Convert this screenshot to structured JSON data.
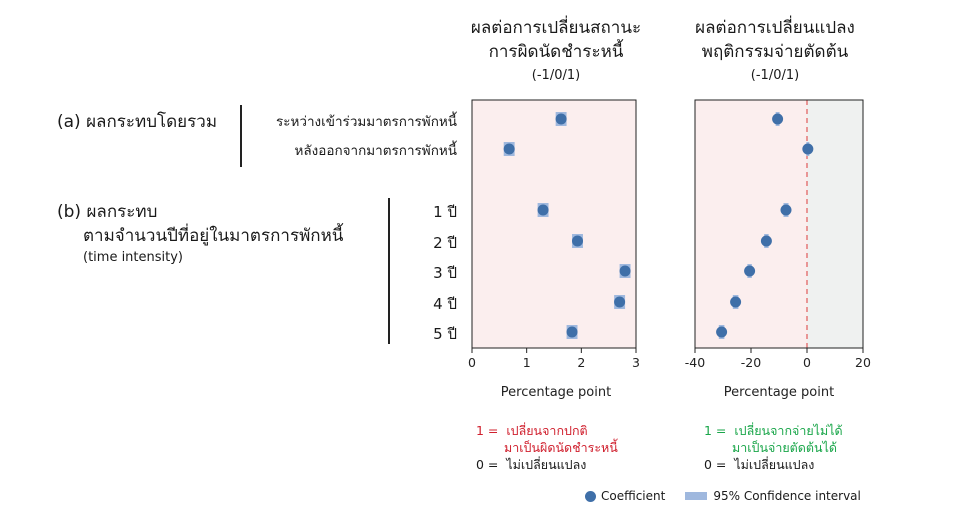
{
  "left_header": {
    "line1": "ผลต่อการเปลี่ยนสถานะ",
    "line2": "การผิดนัดชำระหนี้",
    "line3": "(-1/0/1)"
  },
  "right_header": {
    "line1": "ผลต่อการเปลี่ยนแปลง",
    "line2": "พฤติกรรมจ่ายตัดต้น",
    "line3": "(-1/0/1)"
  },
  "section_a": {
    "label": "(a)  ผลกระทบโดยรวม",
    "rows": [
      "ระหว่างเข้าร่วมมาตรการพักหนี้",
      "หลังออกจากมาตรการพักหนี้"
    ]
  },
  "section_b": {
    "line1": "(b)  ผลกระทบ",
    "line2": "ตามจำนวนปีที่อยู่ในมาตรการพักหนี้",
    "line3": "(time intensity)",
    "rows": [
      "1 ปี",
      "2 ปี",
      "3 ปี",
      "4 ปี",
      "5 ปี"
    ]
  },
  "left_note": {
    "l1_prefix": "1 =",
    "l1_text": "เปลี่ยนจากปกติ",
    "l2_text": "มาเป็นผิดนัดชำระหนี้",
    "l3_prefix": "0 =",
    "l3_text": "ไม่เปลี่ยนแปลง"
  },
  "right_note": {
    "l1_prefix": "1 =",
    "l1_text": "เปลี่ยนจากจ่ายไม่ได้",
    "l2_text": "มาเป็นจ่ายตัดต้นได้",
    "l3_prefix": "0 =",
    "l3_text": "ไม่เปลี่ยนแปลง"
  },
  "legend": {
    "coefficient": "Coefficient",
    "ci": "95% Confidence interval"
  },
  "colors": {
    "marker": "#3f6fa8",
    "ci": "#9fb8de",
    "left_bg": "#fbeeee",
    "right_bg_neg": "#fbeeee",
    "right_bg_pos": "#eff1f0",
    "zero_line": "#e05a5a",
    "note_red": "#d0202e",
    "note_green": "#1aa64a"
  },
  "chart_data": [
    {
      "type": "scatter",
      "xlabel": "Percentage point",
      "xlim": [
        0,
        3
      ],
      "xticks": [
        0,
        1,
        2,
        3
      ],
      "rows": [
        "ระหว่างเข้าร่วมมาตรการพักหนี้",
        "หลังออกจากมาตรการพักหนี้",
        "1 ปี",
        "2 ปี",
        "3 ปี",
        "4 ปี",
        "5 ปี"
      ],
      "series": [
        {
          "name": "Coefficient",
          "values": [
            1.63,
            0.68,
            1.3,
            1.93,
            2.8,
            2.7,
            1.83
          ]
        },
        {
          "name": "95% Confidence interval",
          "ci_low": [
            1.53,
            0.58,
            1.2,
            1.83,
            2.7,
            2.6,
            1.73
          ],
          "ci_high": [
            1.73,
            0.78,
            1.4,
            2.03,
            2.9,
            2.8,
            1.93
          ]
        }
      ]
    },
    {
      "type": "scatter",
      "xlabel": "Percentage point",
      "xlim": [
        -40,
        20
      ],
      "xticks": [
        -40,
        -20,
        0,
        20
      ],
      "reference_line": 0,
      "rows": [
        "ระหว่างเข้าร่วมมาตรการพักหนี้",
        "หลังออกจากมาตรการพักหนี้",
        "1 ปี",
        "2 ปี",
        "3 ปี",
        "4 ปี",
        "5 ปี"
      ],
      "series": [
        {
          "name": "Coefficient",
          "values": [
            -10.5,
            0.3,
            -7.5,
            -14.5,
            -20.5,
            -25.5,
            -30.5
          ]
        },
        {
          "name": "95% Confidence interval",
          "ci_low": [
            -11.2,
            -0.2,
            -8.4,
            -15.3,
            -21.3,
            -26.5,
            -31.5
          ],
          "ci_high": [
            -9.8,
            0.8,
            -6.6,
            -13.7,
            -19.7,
            -24.5,
            -29.5
          ]
        }
      ]
    }
  ]
}
